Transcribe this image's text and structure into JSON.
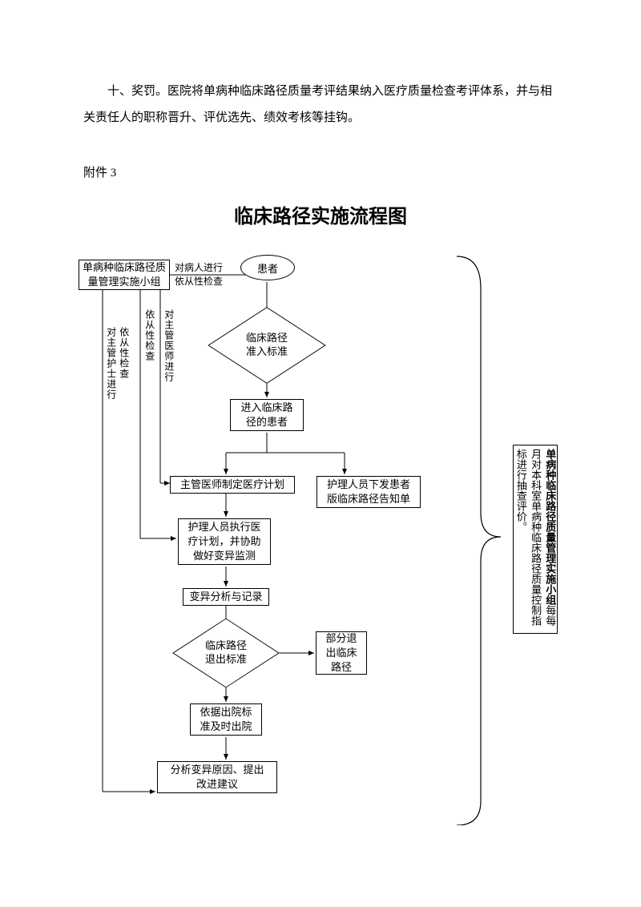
{
  "paragraph": "十、奖罚。医院将单病种临床路径质量考评结果纳入医疗质量检查考评体系，并与相关责任人的职称晋升、评优选先、绩效考核等挂钩。",
  "appendix": "附件 3",
  "title": "临床路径实施流程图",
  "nodes": {
    "start": {
      "label": "患者"
    },
    "group": {
      "label": "单病种临床路径质\n量管理实施小组"
    },
    "admit": {
      "label": "临床路径\n准入标准"
    },
    "enter": {
      "label": "进入临床路\n径的患者"
    },
    "plan": {
      "label": "主管医师制定医疗计划"
    },
    "nurse": {
      "label": "护理人员下发患者\n版临床路径告知单"
    },
    "exec": {
      "label": "护理人员执行医\n疗计划，并协助\n做好变异监测"
    },
    "varrec": {
      "label": "变异分析与记录"
    },
    "exitstd": {
      "label": "临床路径\n退出标准"
    },
    "partial": {
      "label": "部分退\n出临床\n路径"
    },
    "discharge": {
      "label": "依据出院标\n准及时出院"
    },
    "analyze": {
      "label": "分析变异原因、提出\n改进建议"
    }
  },
  "edge_labels": {
    "e1": "对病人进行\n依从性检查",
    "v1": "对主管护士进行",
    "v2": "依从性检查",
    "v3": "依从性检查",
    "v4": "对主管医师进行"
  },
  "sidebox": {
    "line_bold": "单病种临床路径质量管理实施小组",
    "line_rest": "每每月对本科室单病种临床路径质量控制指标进行抽查评价。"
  },
  "colors": {
    "stroke": "#000000",
    "background": "#ffffff"
  }
}
